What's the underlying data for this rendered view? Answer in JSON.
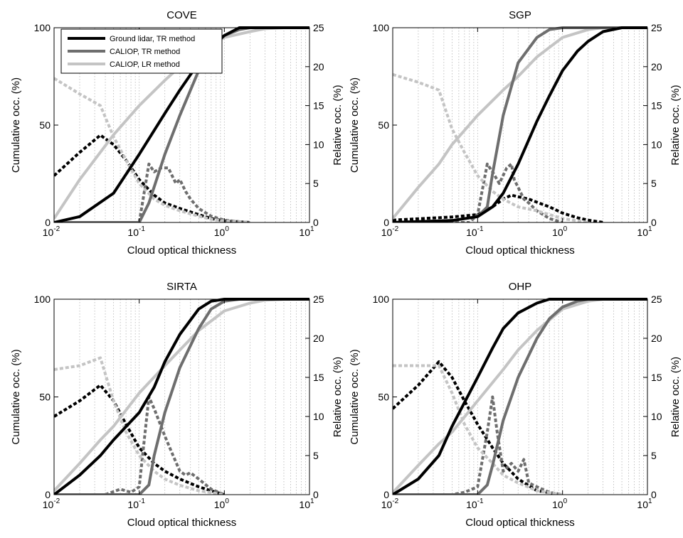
{
  "axis_labels": {
    "x": "Cloud optical thickness",
    "y_left": "Cumulative occ. (%)",
    "y_right": "Relative occ. (%)"
  },
  "tick_labels": {
    "x_base": "10",
    "x_exponents": [
      "-2",
      "-1",
      "0",
      "1"
    ],
    "y_left": [
      "0",
      "50",
      "100"
    ],
    "y_right": [
      "0",
      "5",
      "10",
      "15",
      "20",
      "25"
    ]
  },
  "legend": {
    "entries": [
      {
        "label": "Ground lidar, TR method",
        "color": "#000000"
      },
      {
        "label": "CALIOP, TR method",
        "color": "#6e6e6e"
      },
      {
        "label": "CALIOP, LR method",
        "color": "#c4c4c4"
      }
    ]
  },
  "colors": {
    "ground_tr": "#000000",
    "caliop_tr": "#6e6e6e",
    "caliop_lr": "#c4c4c4",
    "grid": "#b4b4b4"
  },
  "chart_data": [
    {
      "type": "line",
      "title": "COVE",
      "xlabel": "Cloud optical thickness",
      "ylabel": "Cumulative occ. (%)",
      "y2label": "Relative occ. (%)",
      "xscale": "log",
      "xlim": [
        0.01,
        10
      ],
      "ylim": [
        0,
        100
      ],
      "y2lim": [
        0,
        25
      ],
      "grid": "x-minor dotted",
      "legend_position": "top-left",
      "series": [
        {
          "name": "Ground lidar, TR method",
          "axis": "left",
          "style": "solid",
          "x": [
            0.01,
            0.02,
            0.05,
            0.1,
            0.2,
            0.3,
            0.5,
            0.7,
            1,
            1.5,
            2,
            5,
            10
          ],
          "y": [
            0,
            3,
            15,
            35,
            56,
            68,
            82,
            90,
            96,
            100,
            100,
            100,
            100
          ]
        },
        {
          "name": "CALIOP, TR method",
          "axis": "left",
          "style": "solid",
          "x": [
            0.01,
            0.08,
            0.1,
            0.13,
            0.2,
            0.3,
            0.5,
            0.7,
            1,
            1.5,
            2,
            5,
            10
          ],
          "y": [
            0,
            0,
            0,
            10,
            35,
            55,
            78,
            90,
            96,
            99,
            100,
            100,
            100
          ]
        },
        {
          "name": "CALIOP, LR method",
          "axis": "left",
          "style": "solid",
          "x": [
            0.01,
            0.02,
            0.05,
            0.1,
            0.2,
            0.3,
            0.5,
            1,
            2,
            3,
            5,
            10
          ],
          "y": [
            2,
            22,
            45,
            60,
            73,
            80,
            88,
            95,
            98,
            99.5,
            100,
            100
          ]
        },
        {
          "name": "",
          "axis": "right",
          "style": "dashed",
          "x": [
            0.01,
            0.02,
            0.035,
            0.05,
            0.07,
            0.1,
            0.15,
            0.2,
            0.3,
            0.5,
            0.7,
            1,
            2
          ],
          "y": [
            6,
            9,
            11.2,
            10,
            8,
            5.5,
            3.5,
            2.5,
            1.8,
            1,
            0.5,
            0.2,
            0
          ]
        },
        {
          "name": "",
          "axis": "right",
          "style": "dashed",
          "x": [
            0.01,
            0.1,
            0.13,
            0.15,
            0.18,
            0.22,
            0.27,
            0.3,
            0.35,
            0.4,
            0.5,
            0.7,
            1,
            1.5,
            2
          ],
          "y": [
            0,
            0,
            7.5,
            6.5,
            7,
            7,
            5,
            5.5,
            4,
            3,
            1.8,
            0.8,
            0.3,
            0.1,
            0
          ]
        },
        {
          "name": "",
          "axis": "right",
          "style": "dashed",
          "x": [
            0.01,
            0.02,
            0.035,
            0.05,
            0.07,
            0.1,
            0.15,
            0.2,
            0.3,
            0.5,
            0.7,
            1,
            2
          ],
          "y": [
            18.5,
            16.5,
            15,
            11,
            8,
            5,
            3,
            2.2,
            1.5,
            0.8,
            0.4,
            0.2,
            0
          ]
        }
      ]
    },
    {
      "type": "line",
      "title": "SGP",
      "xlabel": "Cloud optical thickness",
      "ylabel": "Cumulative occ. (%)",
      "y2label": "Relative occ. (%)",
      "xscale": "log",
      "xlim": [
        0.01,
        10
      ],
      "ylim": [
        0,
        100
      ],
      "y2lim": [
        0,
        25
      ],
      "grid": "x-minor dotted",
      "series": [
        {
          "name": "Ground lidar, TR method",
          "axis": "left",
          "style": "solid",
          "x": [
            0.01,
            0.05,
            0.1,
            0.15,
            0.2,
            0.3,
            0.5,
            0.7,
            1,
            1.5,
            2,
            3,
            5,
            10
          ],
          "y": [
            0,
            1,
            3,
            8,
            15,
            30,
            52,
            65,
            78,
            88,
            93,
            98,
            100,
            100
          ]
        },
        {
          "name": "CALIOP, TR method",
          "axis": "left",
          "style": "solid",
          "x": [
            0.01,
            0.05,
            0.1,
            0.13,
            0.15,
            0.2,
            0.3,
            0.5,
            0.7,
            1,
            10
          ],
          "y": [
            0,
            1,
            3,
            8,
            25,
            55,
            82,
            95,
            99,
            100,
            100
          ]
        },
        {
          "name": "CALIOP, LR method",
          "axis": "left",
          "style": "solid",
          "x": [
            0.01,
            0.02,
            0.035,
            0.05,
            0.1,
            0.2,
            0.3,
            0.5,
            1,
            2,
            3,
            5,
            10
          ],
          "y": [
            2,
            18,
            30,
            40,
            55,
            68,
            75,
            85,
            95,
            99,
            100,
            100,
            100
          ]
        },
        {
          "name": "",
          "axis": "right",
          "style": "dashed",
          "x": [
            0.01,
            0.05,
            0.1,
            0.15,
            0.2,
            0.25,
            0.3,
            0.4,
            0.5,
            0.7,
            1,
            1.5,
            2,
            3
          ],
          "y": [
            0.3,
            0.7,
            1,
            2,
            3,
            3.5,
            3.3,
            3,
            2.6,
            2,
            1.2,
            0.6,
            0.3,
            0
          ]
        },
        {
          "name": "",
          "axis": "right",
          "style": "dashed",
          "x": [
            0.01,
            0.08,
            0.1,
            0.13,
            0.15,
            0.18,
            0.22,
            0.25,
            0.27,
            0.3,
            0.35,
            0.4,
            0.5,
            0.7,
            1
          ],
          "y": [
            0,
            0,
            1,
            7.5,
            6.5,
            5,
            7,
            7.5,
            5.5,
            4.5,
            3,
            2.5,
            1.5,
            0.5,
            0
          ]
        },
        {
          "name": "",
          "axis": "right",
          "style": "dashed",
          "x": [
            0.01,
            0.02,
            0.035,
            0.05,
            0.07,
            0.1,
            0.15,
            0.2,
            0.3,
            0.5,
            1,
            2
          ],
          "y": [
            19,
            18,
            17,
            12,
            9,
            6,
            4,
            3,
            2,
            1.5,
            0.5,
            0
          ]
        }
      ]
    },
    {
      "type": "line",
      "title": "SIRTA",
      "xlabel": "Cloud optical thickness",
      "ylabel": "Cumulative occ. (%)",
      "y2label": "Relative occ. (%)",
      "xscale": "log",
      "xlim": [
        0.01,
        10
      ],
      "ylim": [
        0,
        100
      ],
      "y2lim": [
        0,
        25
      ],
      "grid": "x-minor dotted",
      "series": [
        {
          "name": "Ground lidar, TR method",
          "axis": "left",
          "style": "solid",
          "x": [
            0.01,
            0.02,
            0.035,
            0.05,
            0.1,
            0.15,
            0.2,
            0.3,
            0.5,
            0.7,
            1,
            10
          ],
          "y": [
            0,
            10,
            20,
            28,
            42,
            55,
            68,
            82,
            95,
            99,
            100,
            100
          ]
        },
        {
          "name": "CALIOP, TR method",
          "axis": "left",
          "style": "solid",
          "x": [
            0.01,
            0.1,
            0.13,
            0.15,
            0.2,
            0.3,
            0.5,
            0.7,
            1,
            1.5,
            2,
            10
          ],
          "y": [
            0,
            0,
            5,
            20,
            42,
            65,
            85,
            95,
            99,
            100,
            100,
            100
          ]
        },
        {
          "name": "CALIOP, LR method",
          "axis": "left",
          "style": "solid",
          "x": [
            0.01,
            0.02,
            0.035,
            0.05,
            0.1,
            0.2,
            0.3,
            0.5,
            1,
            2,
            3,
            5,
            10
          ],
          "y": [
            2,
            16,
            28,
            35,
            52,
            66,
            74,
            84,
            94,
            98,
            99.5,
            100,
            100
          ]
        },
        {
          "name": "",
          "axis": "right",
          "style": "dashed",
          "x": [
            0.01,
            0.02,
            0.035,
            0.05,
            0.07,
            0.1,
            0.15,
            0.2,
            0.3,
            0.5,
            0.7,
            1
          ],
          "y": [
            10,
            12,
            14,
            12,
            9,
            6,
            4,
            3,
            2,
            1,
            0.5,
            0
          ]
        },
        {
          "name": "",
          "axis": "right",
          "style": "dashed",
          "x": [
            0.01,
            0.04,
            0.06,
            0.08,
            0.1,
            0.13,
            0.15,
            0.2,
            0.25,
            0.3,
            0.35,
            0.4,
            0.5,
            0.7,
            1
          ],
          "y": [
            0,
            0,
            0.7,
            0.3,
            1,
            12.5,
            11,
            7.5,
            5,
            3,
            2.5,
            2.8,
            2,
            0.7,
            0
          ]
        },
        {
          "name": "",
          "axis": "right",
          "style": "dashed",
          "x": [
            0.01,
            0.02,
            0.035,
            0.05,
            0.07,
            0.1,
            0.15,
            0.2,
            0.3,
            0.5,
            1
          ],
          "y": [
            16,
            16.5,
            17.5,
            12,
            8,
            5,
            3,
            2,
            1.2,
            0.5,
            0
          ]
        }
      ]
    },
    {
      "type": "line",
      "title": "OHP",
      "xlabel": "Cloud optical thickness",
      "ylabel": "Cumulative occ. (%)",
      "y2label": "Relative occ. (%)",
      "xscale": "log",
      "xlim": [
        0.01,
        10
      ],
      "ylim": [
        0,
        100
      ],
      "y2lim": [
        0,
        25
      ],
      "grid": "x-minor dotted",
      "series": [
        {
          "name": "Ground lidar, TR method",
          "axis": "left",
          "style": "solid",
          "x": [
            0.01,
            0.02,
            0.035,
            0.05,
            0.1,
            0.15,
            0.2,
            0.3,
            0.5,
            0.7,
            1,
            10
          ],
          "y": [
            0,
            8,
            20,
            35,
            60,
            75,
            85,
            93,
            98,
            100,
            100,
            100
          ]
        },
        {
          "name": "CALIOP, TR method",
          "axis": "left",
          "style": "solid",
          "x": [
            0.01,
            0.1,
            0.13,
            0.15,
            0.2,
            0.3,
            0.5,
            0.7,
            1,
            1.5,
            2,
            10
          ],
          "y": [
            0,
            0,
            5,
            15,
            38,
            60,
            80,
            90,
            96,
            99,
            100,
            100
          ]
        },
        {
          "name": "CALIOP, LR method",
          "axis": "left",
          "style": "solid",
          "x": [
            0.01,
            0.02,
            0.035,
            0.05,
            0.1,
            0.2,
            0.3,
            0.5,
            1,
            2,
            3,
            5,
            10
          ],
          "y": [
            1,
            15,
            26,
            32,
            48,
            64,
            74,
            84,
            95,
            99,
            100,
            100,
            100
          ]
        },
        {
          "name": "",
          "axis": "right",
          "style": "dashed",
          "x": [
            0.01,
            0.02,
            0.035,
            0.05,
            0.07,
            0.1,
            0.15,
            0.2,
            0.3,
            0.5,
            1
          ],
          "y": [
            11,
            14,
            17,
            15,
            12,
            9,
            6,
            4,
            2,
            0.5,
            0
          ]
        },
        {
          "name": "",
          "axis": "right",
          "style": "dashed",
          "x": [
            0.01,
            0.05,
            0.07,
            0.1,
            0.13,
            0.15,
            0.17,
            0.2,
            0.25,
            0.3,
            0.35,
            0.4,
            0.5,
            0.7,
            1
          ],
          "y": [
            0,
            0,
            0.3,
            1,
            8,
            12.5,
            8,
            3,
            4,
            3,
            4.5,
            1.5,
            1,
            0.3,
            0
          ]
        },
        {
          "name": "",
          "axis": "right",
          "style": "dashed",
          "x": [
            0.01,
            0.02,
            0.035,
            0.05,
            0.07,
            0.1,
            0.15,
            0.2,
            0.3,
            0.5,
            1
          ],
          "y": [
            16.5,
            16.5,
            16.5,
            13,
            9,
            6,
            4,
            2.5,
            1.5,
            0.5,
            0
          ]
        }
      ]
    }
  ]
}
